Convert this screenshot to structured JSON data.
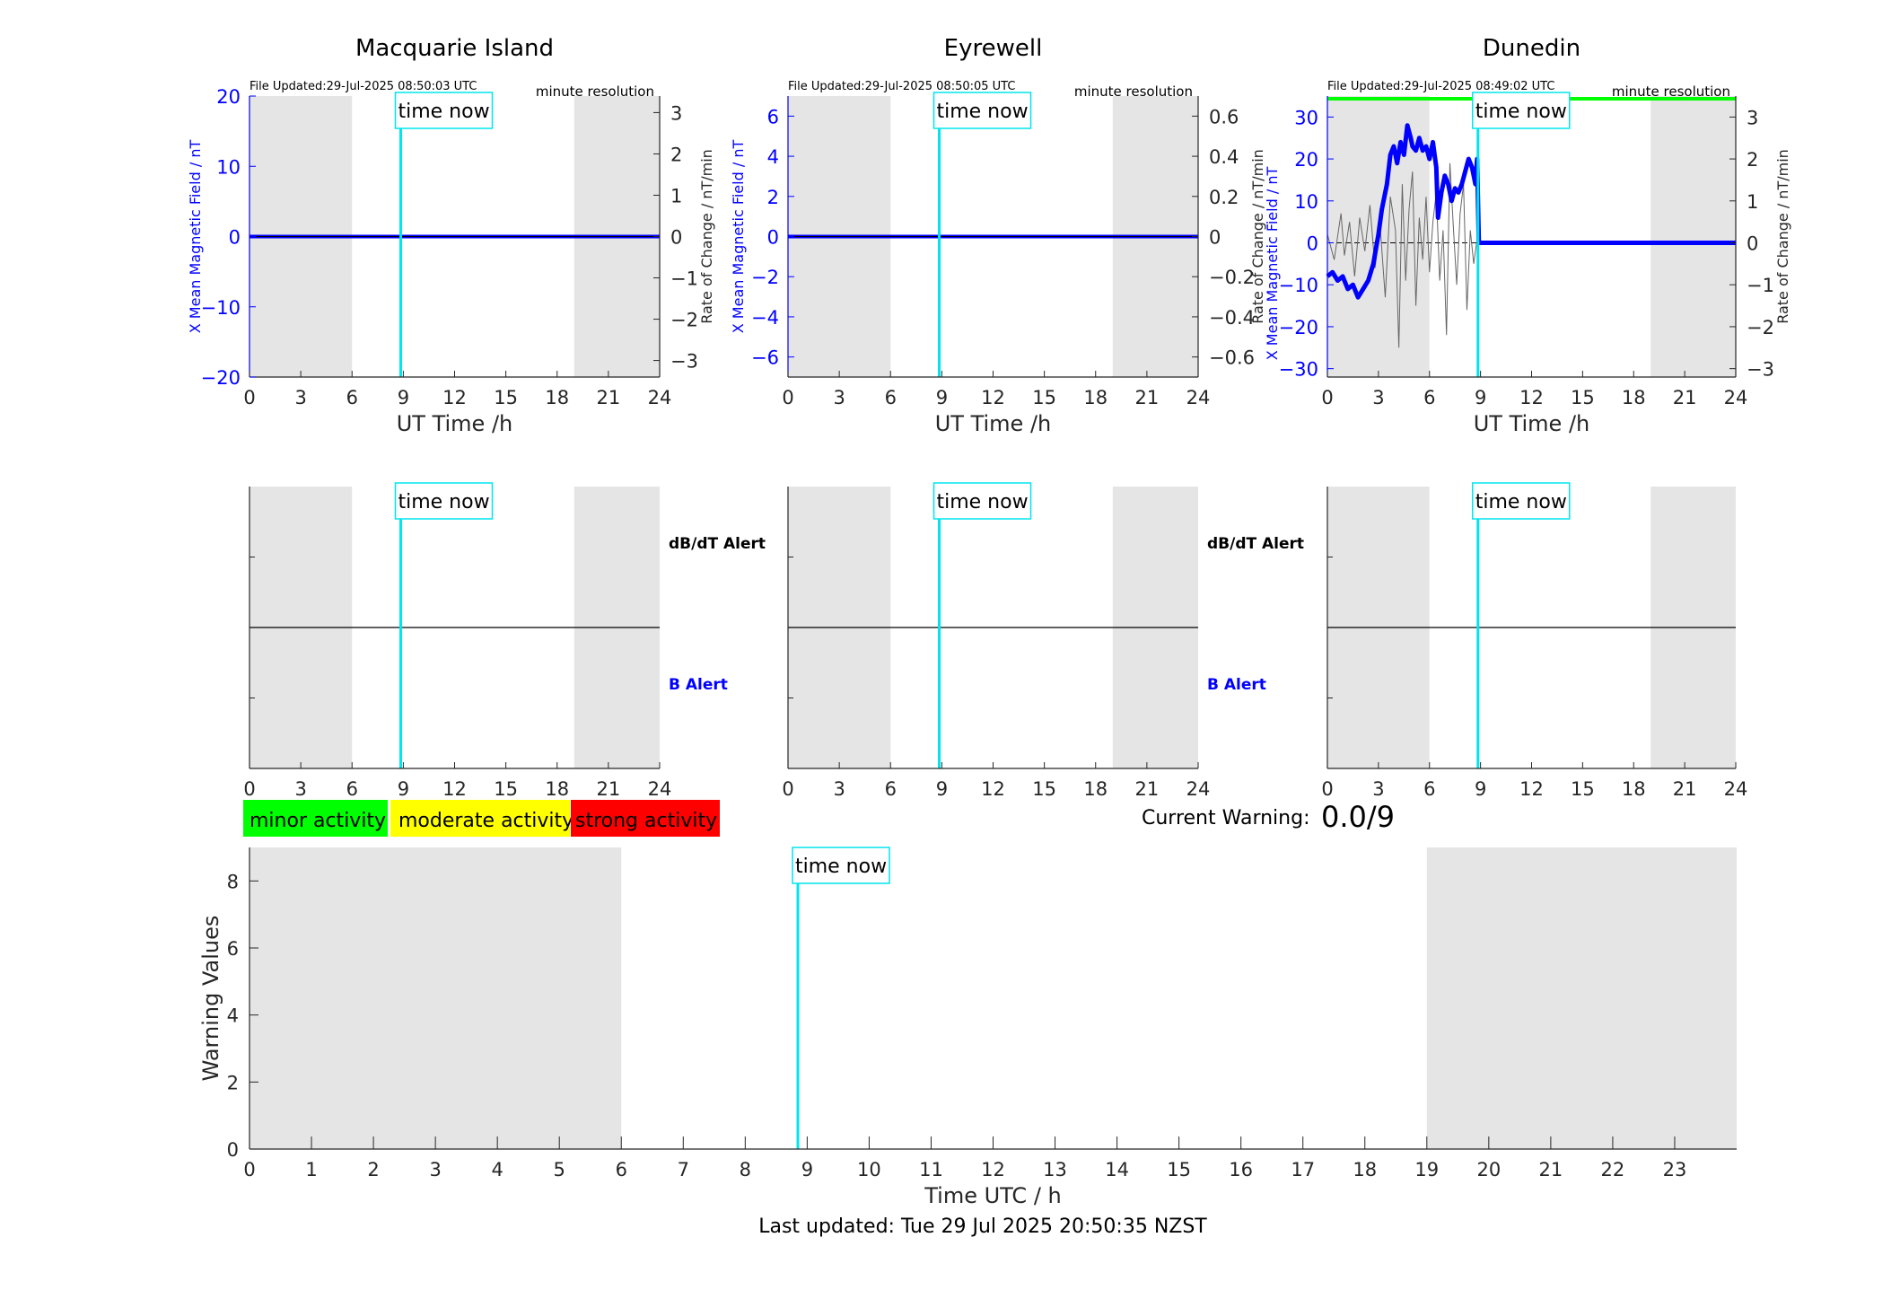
{
  "page": {
    "current_warning_label": "Current Warning:",
    "current_warning_value": "0.0/9",
    "last_updated": "Last updated: Tue 29 Jul 2025 20:50:35 NZST"
  },
  "legend": {
    "minor": "minor activity",
    "moderate": "moderate activity",
    "strong": "strong activity"
  },
  "colors": {
    "field": "#0000ff",
    "rate": "#666666",
    "time_now": "#00e5ee",
    "shade": "#e5e5e5",
    "status_bar": "#00ff00",
    "minor": "#00ff00",
    "moderate": "#ffff00",
    "strong": "#ff0000"
  },
  "chart_data": [
    {
      "type": "line",
      "title": "Macquarie Island",
      "file_updated": "File Updated:29-Jul-2025 08:50:03 UTC",
      "resolution": "minute resolution",
      "time_now_label": "time now",
      "xlabel": "UT Time /h",
      "ylabel_left": "X Mean Magnetic Field / nT",
      "ylabel_right": "Rate of Change / nT/min",
      "xlim": [
        0,
        24
      ],
      "xticks": [
        0,
        3,
        6,
        9,
        12,
        15,
        18,
        21,
        24
      ],
      "ylim": [
        -20,
        20
      ],
      "yticks": [
        -20,
        -10,
        0,
        10,
        20
      ],
      "y2lim": [
        -3.4,
        3.4
      ],
      "y2ticks": [
        -3,
        -2,
        -1,
        0,
        1,
        2,
        3
      ],
      "shade": [
        [
          0,
          6
        ],
        [
          19,
          24
        ]
      ],
      "time_now": 8.85,
      "status_bar": false,
      "series": [
        {
          "x": [
            0,
            24
          ],
          "y": [
            0,
            0
          ]
        }
      ]
    },
    {
      "type": "line",
      "title": "Eyrewell",
      "file_updated": "File Updated:29-Jul-2025 08:50:05 UTC",
      "resolution": "minute resolution",
      "time_now_label": "time now",
      "xlabel": "UT Time /h",
      "ylabel_left": "X Mean Magnetic Field / nT",
      "ylabel_right": "",
      "xlim": [
        0,
        24
      ],
      "xticks": [
        0,
        3,
        6,
        9,
        12,
        15,
        18,
        21,
        24
      ],
      "ylim": [
        -7,
        7
      ],
      "yticks": [
        -6,
        -4,
        -2,
        0,
        2,
        4,
        6
      ],
      "y2lim": [
        -0.7,
        0.7
      ],
      "y2ticks": [
        -0.6,
        -0.4,
        -0.2,
        0,
        0.2,
        0.4,
        0.6
      ],
      "shade": [
        [
          0,
          6
        ],
        [
          19,
          24
        ]
      ],
      "time_now": 8.85,
      "status_bar": false,
      "series": [
        {
          "x": [
            0,
            24
          ],
          "y": [
            0,
            0
          ]
        }
      ]
    },
    {
      "type": "line",
      "title": "Dunedin",
      "file_updated": "File Updated:29-Jul-2025 08:49:02 UTC",
      "resolution": "minute resolution",
      "time_now_label": "time now",
      "xlabel": "UT Time /h",
      "ylabel_left": "X Mean Magnetic Field / nT",
      "ylabel_left2": "Rate of Change / nT/min",
      "ylabel_right": "Rate of Change / nT/min",
      "xlim": [
        0,
        24
      ],
      "xticks": [
        0,
        3,
        6,
        9,
        12,
        15,
        18,
        21,
        24
      ],
      "ylim": [
        -32,
        35
      ],
      "yticks": [
        -30,
        -20,
        -10,
        0,
        10,
        20,
        30
      ],
      "y2lim": [
        -3.2,
        3.5
      ],
      "y2ticks": [
        -3,
        -2,
        -1,
        0,
        1,
        2,
        3
      ],
      "shade": [
        [
          0,
          6
        ],
        [
          19,
          24
        ]
      ],
      "time_now": 8.85,
      "status_bar": true,
      "series": [
        {
          "x": [
            0,
            0.3,
            0.6,
            0.9,
            1.2,
            1.5,
            1.8,
            2.1,
            2.4,
            2.7,
            3.0,
            3.2,
            3.5,
            3.7,
            3.9,
            4.1,
            4.3,
            4.5,
            4.7,
            4.9,
            5.0,
            5.2,
            5.4,
            5.6,
            5.8,
            6.0,
            6.2,
            6.4,
            6.5,
            6.7,
            6.9,
            7.1,
            7.3,
            7.5,
            7.7,
            7.9,
            8.1,
            8.3,
            8.5,
            8.7,
            8.8,
            8.9,
            9.2,
            12,
            15,
            18,
            21,
            24
          ],
          "y": [
            -8,
            -7,
            -9,
            -8,
            -11,
            -10,
            -13,
            -11,
            -9,
            -5,
            2,
            8,
            14,
            21,
            23,
            19,
            24,
            21,
            28,
            25,
            23,
            22,
            25,
            22,
            23,
            20,
            24,
            18,
            6,
            12,
            16,
            14,
            10,
            13,
            12,
            14,
            17,
            20,
            18,
            14,
            20,
            0,
            0,
            0,
            0,
            0,
            0,
            0
          ]
        },
        {
          "x": [
            0,
            0.4,
            0.8,
            1.0,
            1.3,
            1.6,
            1.9,
            2.2,
            2.5,
            2.8,
            3.1,
            3.4,
            3.7,
            4.0,
            4.2,
            4.4,
            4.6,
            4.8,
            5.0,
            5.2,
            5.4,
            5.6,
            5.8,
            6.0,
            6.2,
            6.4,
            6.6,
            6.8,
            7.0,
            7.2,
            7.4,
            7.6,
            7.8,
            8.0,
            8.2,
            8.4,
            8.6,
            8.8
          ],
          "y": [
            0.2,
            -0.4,
            0.7,
            -0.3,
            0.5,
            -0.8,
            0.6,
            -0.2,
            0.9,
            -0.6,
            0.4,
            -1.3,
            1.1,
            0.3,
            -2.5,
            1.4,
            -0.9,
            0.8,
            1.7,
            -1.5,
            0.6,
            -0.4,
            1.1,
            -0.7,
            0.5,
            1.2,
            -0.9,
            0.3,
            -2.2,
            1.9,
            0.4,
            -1.0,
            0.7,
            1.4,
            -1.6,
            0.3,
            -0.5,
            0.1
          ]
        }
      ]
    },
    {
      "type": "line",
      "title": "",
      "time_now_label": "time now",
      "xlim": [
        0,
        24
      ],
      "xticks": [
        0,
        3,
        6,
        9,
        12,
        15,
        18,
        21,
        24
      ],
      "upper_label": "dB/dT Alert",
      "lower_label": "B Alert",
      "shade": [
        [
          0,
          6
        ],
        [
          19,
          24
        ]
      ],
      "time_now": 8.85
    },
    {
      "type": "line",
      "title": "",
      "time_now_label": "time now",
      "xlim": [
        0,
        24
      ],
      "xticks": [
        0,
        3,
        6,
        9,
        12,
        15,
        18,
        21,
        24
      ],
      "upper_label": "dB/dT Alert",
      "lower_label": "B Alert",
      "shade": [
        [
          0,
          6
        ],
        [
          19,
          24
        ]
      ],
      "time_now": 8.85
    },
    {
      "type": "line",
      "title": "",
      "time_now_label": "time now",
      "xlim": [
        0,
        24
      ],
      "xticks": [
        0,
        3,
        6,
        9,
        12,
        15,
        18,
        21,
        24
      ],
      "upper_label": "",
      "lower_label": "",
      "shade": [
        [
          0,
          6
        ],
        [
          19,
          24
        ]
      ],
      "time_now": 8.85
    },
    {
      "type": "line",
      "title": "",
      "xlabel": "Time UTC / h",
      "ylabel": "Warning Values",
      "time_now_label": "time now",
      "xlim": [
        0,
        24
      ],
      "xticks": [
        0,
        1,
        2,
        3,
        4,
        5,
        6,
        7,
        8,
        9,
        10,
        11,
        12,
        13,
        14,
        15,
        16,
        17,
        18,
        19,
        20,
        21,
        22,
        23
      ],
      "ylim": [
        0,
        9
      ],
      "yticks": [
        0,
        2,
        4,
        6,
        8
      ],
      "shade": [
        [
          0,
          6
        ],
        [
          19,
          24
        ]
      ],
      "time_now": 8.85,
      "series": []
    }
  ]
}
